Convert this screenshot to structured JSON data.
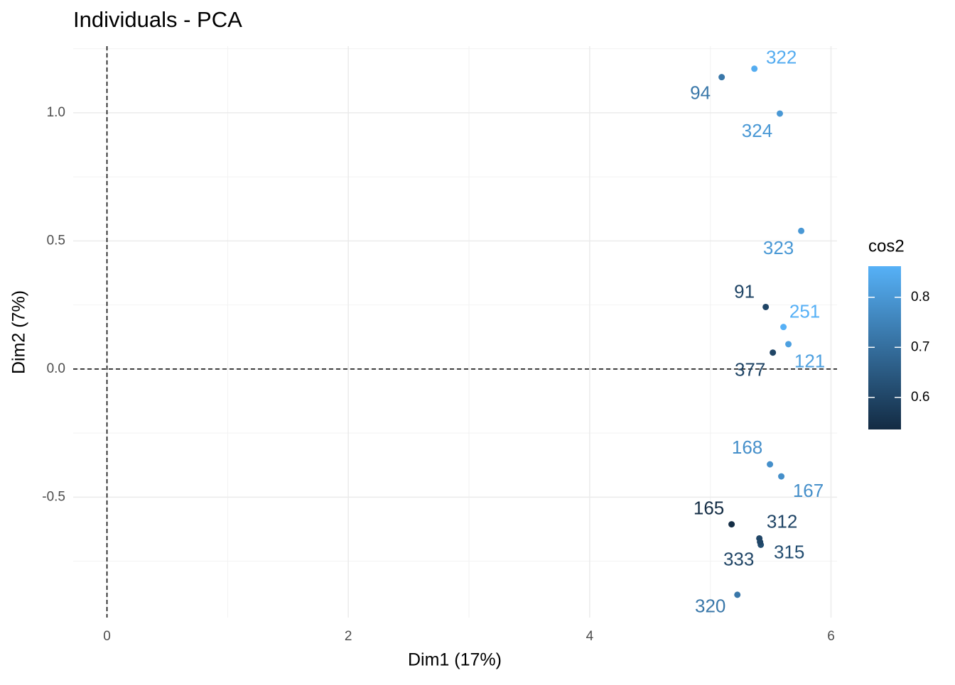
{
  "chart_data": {
    "type": "scatter",
    "title": "Individuals - PCA",
    "x_label": "Dim1 (17%)",
    "y_label": "Dim2 (7%)",
    "xlim": [
      -0.28,
      6.05
    ],
    "ylim": [
      -0.97,
      1.26
    ],
    "xticks": [
      0,
      2,
      4,
      6
    ],
    "yticks": [
      {
        "value": -0.5,
        "label": "-0.5"
      },
      {
        "value": 0,
        "label": "0.0"
      },
      {
        "value": 0.5,
        "label": "0.5"
      },
      {
        "value": 1,
        "label": "1.0"
      }
    ],
    "grid": true,
    "reference_lines": {
      "x": 0,
      "y": 0
    },
    "series": [
      {
        "name": "cos2",
        "labels": [
          "322",
          "94",
          "324",
          "323",
          "91",
          "251",
          "121",
          "377",
          "168",
          "167",
          "165",
          "312",
          "315",
          "333",
          "320"
        ],
        "x": [
          5.365,
          5.094,
          5.576,
          5.753,
          5.459,
          5.606,
          5.647,
          5.518,
          5.494,
          5.588,
          5.176,
          5.406,
          5.418,
          5.412,
          5.224
        ],
        "y": [
          1.172,
          1.139,
          0.997,
          0.539,
          0.242,
          0.164,
          0.097,
          0.064,
          -0.372,
          -0.419,
          -0.606,
          -0.661,
          -0.686,
          -0.675,
          -0.881
        ],
        "cos2": [
          0.85,
          0.72,
          0.8,
          0.8,
          0.6,
          0.86,
          0.82,
          0.6,
          0.78,
          0.78,
          0.54,
          0.6,
          0.62,
          0.6,
          0.72
        ]
      }
    ],
    "legend": {
      "title": "cos2",
      "lim": [
        0.536,
        0.862
      ],
      "ticks": [
        0.6,
        0.7,
        0.8
      ],
      "color_low": "#132B43",
      "color_high": "#56B1F7",
      "position": "right"
    }
  }
}
